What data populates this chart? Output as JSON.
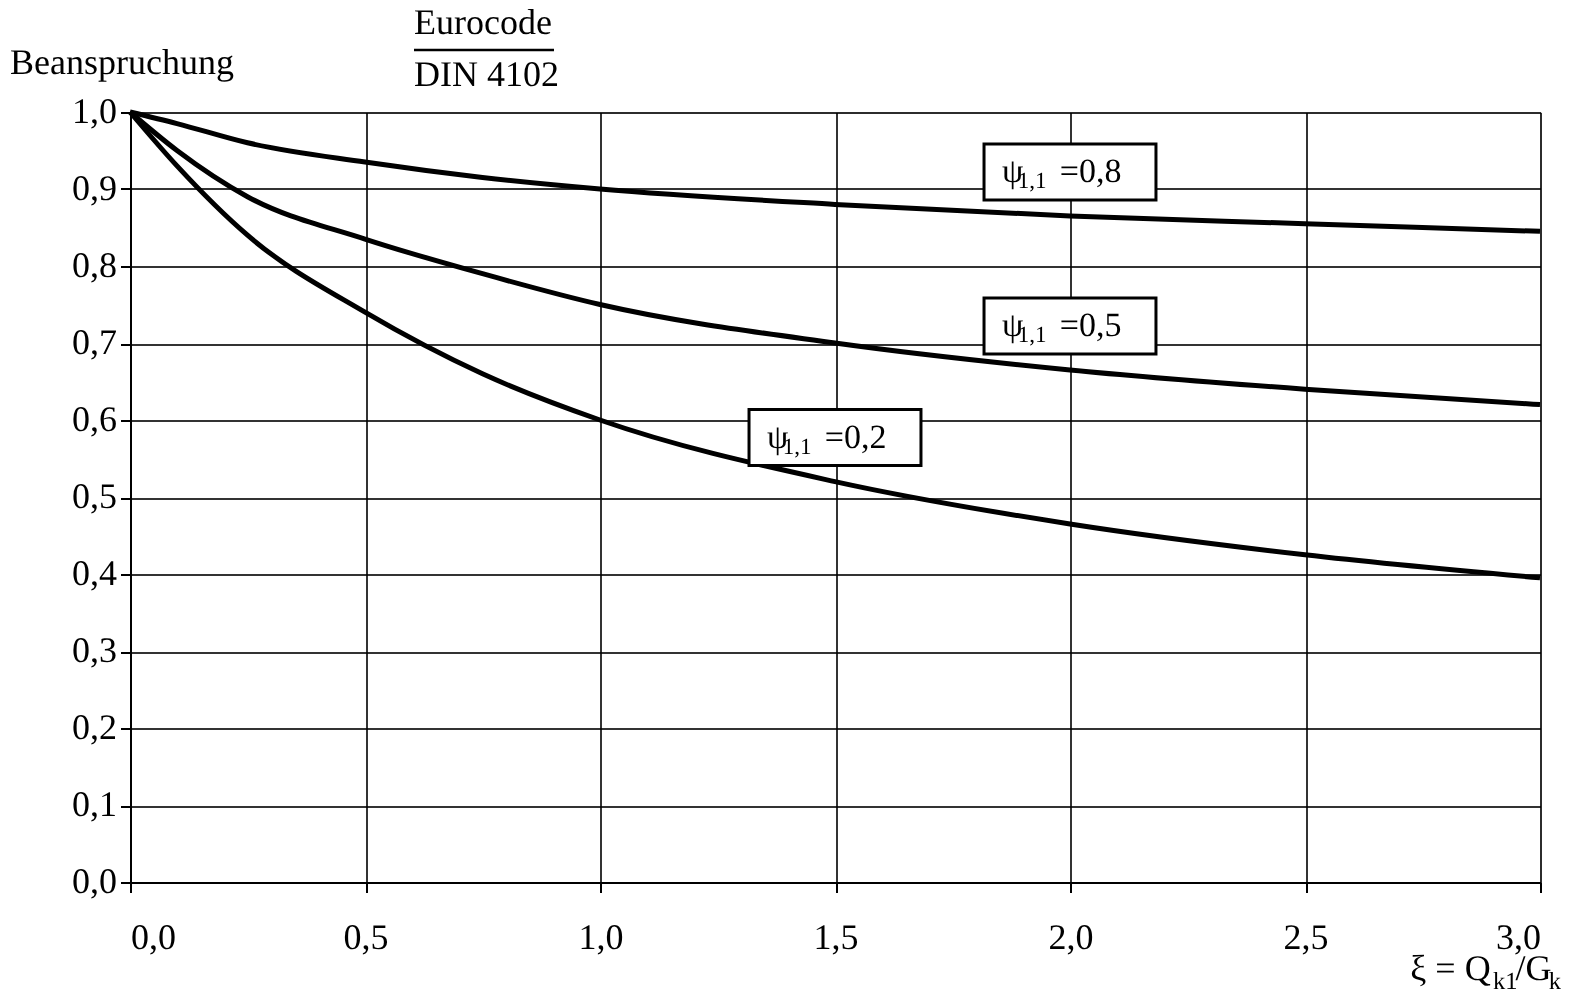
{
  "chart_data": {
    "type": "line",
    "title": [
      "Eurocode",
      "DIN 4102"
    ],
    "ylabel": "Beanspruchung",
    "xlabel": "ξ = Q$_{k1}$/G$_{k}$",
    "x": [
      0,
      0.1,
      0.25,
      0.5,
      0.75,
      1.0,
      1.5,
      2.0,
      2.5,
      3.0
    ],
    "series": [
      {
        "name": "ψ$_{1,1}$ =0,8",
        "color": "#000000",
        "values": [
          1.0,
          0.985,
          0.96,
          0.935,
          0.915,
          0.9,
          0.88,
          0.865,
          0.855,
          0.845
        ]
      },
      {
        "name": "ψ$_{1,1}$ =0,5",
        "color": "#000000",
        "values": [
          1.0,
          0.95,
          0.89,
          0.835,
          0.79,
          0.75,
          0.7,
          0.665,
          0.64,
          0.62
        ]
      },
      {
        "name": "ψ$_{1,1}$ =0,2",
        "color": "#000000",
        "values": [
          1.0,
          0.93,
          0.84,
          0.74,
          0.66,
          0.6,
          0.52,
          0.465,
          0.425,
          0.395
        ]
      }
    ],
    "xlim": [
      0,
      3
    ],
    "xticks": [
      {
        "value": 0,
        "label": "0,0"
      },
      {
        "value": 0.5,
        "label": "0,5"
      },
      {
        "value": 1,
        "label": "1,0"
      },
      {
        "value": 1.5,
        "label": "1,5"
      },
      {
        "value": 2,
        "label": "2,0"
      },
      {
        "value": 2.5,
        "label": "2,5"
      },
      {
        "value": 3,
        "label": "3,0"
      }
    ],
    "ylim": [
      0,
      1
    ],
    "yticks": [
      {
        "value": 0,
        "label": "0,0"
      },
      {
        "value": 0.1,
        "label": "0,1"
      },
      {
        "value": 0.2,
        "label": "0,2"
      },
      {
        "value": 0.3,
        "label": "0,3"
      },
      {
        "value": 0.4,
        "label": "0,4"
      },
      {
        "value": 0.5,
        "label": "0,5"
      },
      {
        "value": 0.6,
        "label": "0,6"
      },
      {
        "value": 0.7,
        "label": "0,7"
      },
      {
        "value": 0.8,
        "label": "0,8"
      },
      {
        "value": 0.9,
        "label": "0,9"
      },
      {
        "value": 1.0,
        "label": "1,0"
      }
    ],
    "grid": true,
    "marker": "none",
    "line_style": "solid"
  }
}
